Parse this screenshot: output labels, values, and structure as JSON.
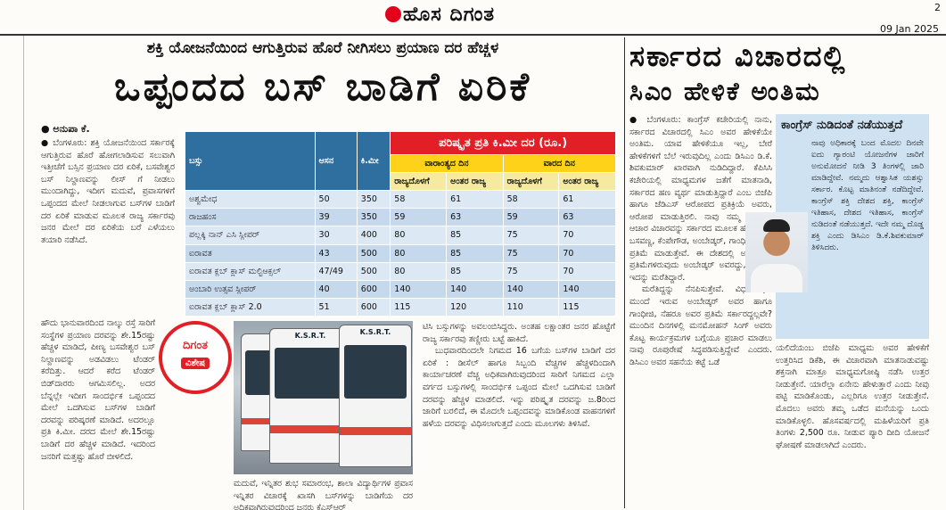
{
  "masthead": {
    "logo": "ಹೊಸ ದಿಗಂತ",
    "page_number": "2",
    "date": "09 Jan 2025"
  },
  "main": {
    "kicker": "ಶಕ್ತಿ ಯೋಜನೆಯಿಂದ ಆಗುತ್ತಿರುವ ಹೊರೆ ನೀಗಿಸಲು ಪ್ರಯಾಣ ದರ ಹೆಚ್ಚಳ",
    "headline": "ಒಪ್ಪಂದದ ಬಸ್ ಬಾಡಿಗೆ ಏರಿಕೆ",
    "byline": "● ಅನುಪಾ ಕೆ.",
    "col1": "● ಬೆಂಗಳೂರು: ಶಕ್ತಿ ಯೋಜನೆಯಿಂದ ಸರ್ಕಾರಕ್ಕೆ ಆಗುತ್ತಿರುವ ಹೊರೆ ಹೋಗಲಾಡಿಸುವ ಸಲುವಾಗಿ ಇತ್ತೀಚೆಗೆ ಬಸ್ಸಿನ ಪ್ರಯಾಣ ದರ ಏರಿಕೆ, ಬಸವೇಶ್ವರ ಬಸ್ ನಿಲ್ದಾಣವನ್ನು ಲೀಸ್ ಗೆ ನೀಡಲು ಮುಂದಾಗಿದ್ದು, ಇದೀಗ ಮದುವೆ, ಪ್ರವಾಸಗಳಿಗೆ ಒಪ್ಪಂದದ ಮೇಲೆ ನೀಡಲಾಗುವ ಬಸ್‌ಗಳ ಬಾಡಿಗೆ ದರ ಏರಿಕೆ ಮಾಡುವ ಮೂಲಕ ರಾಜ್ಯ ಸರ್ಕಾರವು ಜನರ ಮೇಲೆ ದರ ಏರಿಕೆಯ ಬರೆ ಎಳೆಯಲು ತಯಾರಿ ನಡೆಸಿದೆ.",
    "col1b": "ಹೌದು ಭಾನುವಾರದಿಂದ ನಾಲ್ಕು ರಸ್ತೆ ಸಾರಿಗೆ ಸಂಸ್ಥೆಗಳ ಪ್ರಯಾಣ ದರವನ್ನು ಶೇ.15ರಷ್ಟು ಹೆಚ್ಚಳ ಮಾಡಿದೆ, ಪೀಣ್ಯ ಬಸವೇಶ್ವರ ಬಸ್ ನಿಲ್ದಾಣವನ್ನು ಅಡವಿಡಲು ಟೆಂಡರ್ ಕರೆದಿತ್ತು. ಆದರೆ ಕರೆದ ಟೆಂಡರ್ ಬಿಡ್‌ದಾರರು ಆಗಮಿಸಲಿಲ್ಲ. ಅದರ ಬೆನ್ನಲ್ಲೇ ಇದೀಗ ಸಾಂದರ್ಭಿಕ ಒಪ್ಪಂದದ ಮೇಲೆ ಒದಗಿಸುವ ಬಸ್‌ಗಳ ಬಾಡಿಗೆ ದರವನ್ನು ಪರಿಷ್ಕರಣೆ ಮಾಡಿದೆ. ಅದರಲ್ಲೂ ಪ್ರತಿ ಕಿ.ಮೀ. ದರದ ಮೇಲೆ ಶೇ.15ರಷ್ಟು ಬಾಡಿಗೆ ದರ ಹೆಚ್ಚಳ ಮಾಡಿದೆ. ಇದರಿಂದ ಜನರಿಗೆ ಮತ್ತಷ್ಟು ಹೊರೆ ಬೀಳಲಿದೆ.",
    "col2": "ಮದುವೆ, ಇನ್ನಿತರ ಶುಭ ಸಮಾರಂಭ, ಶಾಲಾ ವಿದ್ಯಾರ್ಥಿಗಳ ಪ್ರವಾಸ ಇನ್ನಿತರ ವಿಚಾರಕ್ಕೆ ಖಾಸಗಿ ಬಸ್‌ಗಳನ್ನು ಬಾಡಿಗೆಯ ದರ ಅಧಿಕವಾಗಿರುವುದರಿಂದ ಜನರು ಕೆಎಸ್‌ಆರ್",
    "col3": "ಟಿಸಿ ಬಸ್ಸುಗಳನ್ನು ಅವಲಂಬಿಸಿದ್ದರು. ಅಂತಹ ಲಕ್ಷಾಂತರ ಜನರ ಹೊಟ್ಟೆಗೆ ರಾಜ್ಯ ಸರ್ಕಾರವು ತಣ್ಣೀರು ಬಟ್ಟೆ ಹಾಕಿದೆ.",
    "col3b": "ಬುಧವಾರದಿಂದಲೇ ನಿಗಮದ 16 ಬಗೆಯ ಬಸ್‌ಗಳ ಬಾಡಿಗೆ ದರ ಏರಿಕೆ : ಡೀಸೆಲ್ ಹಾಗೂ ಸಿಬ್ಬಂದಿ ವೆಚ್ಚಗಳ ಹೆಚ್ಚಳದಿಂದಾಗಿ ಕಾರ್ಯಾಚರಣೆ ವೆಚ್ಚ ಅಧಿಕವಾಗಿರುವುದರಿಂದ ಸಾರಿಗೆ ನಿಗಮದ ಎಲ್ಲಾ ವರ್ಗದ ಬಸ್ಸುಗಳಲ್ಲಿ ಸಾಂದರ್ಭಿಕ ಒಪ್ಪಂದ ಮೇಲೆ ಒದಗಿಸುವ ಬಾಡಿಗೆ ದರವನ್ನು ಹೆಚ್ಚಳ ಮಾಡಲಿದೆ. ಇನ್ನು ಪರಿಷ್ಕೃತ ದರವನ್ನು ಜ.8ರಿಂದ ಜಾರಿಗೆ ಬರಲಿದೆ, ಈ ಮೊದಲೇ ಒಪ್ಪಂದವನ್ನು ಮಾಡಿಕೊಂಡ ವಾಹನಗಳಿಗೆ ಹಳೆಯ ದರವನ್ನು ವಿಧಿಸಲಾಗುತ್ತದೆ ಎಂದು ಮೂಲಗಳು ತಿಳಿಸಿವೆ."
  },
  "rate_table": {
    "headers": {
      "bus": "ಬಸ್ಸು",
      "seats": "ಆಸನ",
      "km": "ಕಿ.ಮೀ",
      "rate": "ಪರಿಷ್ಕೃತ ಪ್ರತಿ ಕಿ.ಮೀ ದರ (ರೂ.)",
      "weekday": "ವಾರಾಂತ್ಯದ ದಿನ",
      "weekend": "ವಾರದ ದಿನ",
      "in_state": "ರಾಜ್ಯದೊಳಗೆ",
      "inter_state": "ಅಂತರ ರಾಜ್ಯ"
    },
    "rows": [
      {
        "bus": "ಅಶ್ವಮೇಧ",
        "seats": "50",
        "km": "350",
        "a": "58",
        "b": "61",
        "c": "58",
        "d": "61"
      },
      {
        "bus": "ರಾಜಹಂಸ",
        "seats": "39",
        "km": "350",
        "a": "59",
        "b": "63",
        "c": "59",
        "d": "63"
      },
      {
        "bus": "ಪಲ್ಲಕ್ಕಿ ನಾನ್ ಎಸಿ ಸ್ಲೀಪರ್",
        "seats": "30",
        "km": "400",
        "a": "80",
        "b": "85",
        "c": "75",
        "d": "70"
      },
      {
        "bus": "ಐರಾವತ",
        "seats": "43",
        "km": "500",
        "a": "80",
        "b": "85",
        "c": "75",
        "d": "70"
      },
      {
        "bus": "ಐರಾವತ ಕ್ಲಬ್ ಕ್ಲಾಸ್ ಮಲ್ಟಿಆಕ್ಸಲ್",
        "seats": "47/49",
        "km": "500",
        "a": "80",
        "b": "85",
        "c": "75",
        "d": "70"
      },
      {
        "bus": "ಅಂಬಾರಿ ಉತ್ಸವ ಸ್ಲೀಪರ್",
        "seats": "40",
        "km": "600",
        "a": "140",
        "b": "140",
        "c": "140",
        "d": "140"
      },
      {
        "bus": "ಐರಾವತ ಕ್ಲಬ್ ಕ್ಲಾಸ್ 2.0",
        "seats": "51",
        "km": "600",
        "a": "115",
        "b": "120",
        "c": "110",
        "d": "115"
      }
    ]
  },
  "badge": {
    "title": "ದಿಗಂತ",
    "label": "ವಿಶೇಷ"
  },
  "bus_photo": {
    "label1": "K.S.R.T.",
    "label2": "K.S.R.T."
  },
  "right": {
    "headline1": "ಸರ್ಕಾರದ ವಿಚಾರದಲ್ಲಿ",
    "headline2": "ಸಿಎಂ ಹೇಳಿಕೆ ಅಂತಿಮ",
    "col1": "● ಬೆಂಗಳೂರು: ಕಾಂಗ್ರೆಸ್ ಕಚೇರಿಯಲ್ಲಿ ನಾನು, ಸರ್ಕಾರದ ವಿಚಾರದಲ್ಲಿ ಸಿಎಂ ಅವರ ಹೇಳಿಕೆಯೇ ಅಂತಿಮ. ಯಾವ ಹೇಳಿಕೆಯೂ ಇಲ್ಲ, ಬೇರೆ ಹೇಳಿಕೆಗಳಿಗೆ ಬೆಲೆ ಇರುವುದಿಲ್ಲ ಎಂದು ಡಿಸಿಎಂ ಡಿ.ಕೆ. ಶಿವಕುಮಾರ್ ಖಾರವಾಗಿ ನುಡಿದಿದ್ದಾರೆ. ಕೆಪಿಸಿಸಿ ಕಚೇರಿಯಲ್ಲಿ ಮಾಧ್ಯಮಗಳ ಜತೆಗೆ ಮಾತನಾಡಿ, ಸರ್ಕಾರದ ಹಣ ವ್ಯರ್ಥ ಮಾಡುತ್ತಿದ್ದಾರೆ ಎಂಬ ಬಿಜೆಪಿ ಹಾಗೂ ಜೆಡಿಎಸ್ ಆರೋಪದ ಪ್ರತಿಕ್ರಿಯೆ ಅವರು, ಆರೋಪ ಮಾಡುತ್ತಿರಲಿ. ನಾವು ನಮ್ಮ ಸಿದ್ಧಾಂತ, ಆಚಾರ ವಿಚಾರವನ್ನು ಸರ್ಕಾರದ ಮೂಲಕ ಹೇಳುತ್ತೇವೆ. ಬಸವಣ್ಣ, ಕೆಂಪೇಗೌಡ, ಅಂಬೇಡ್ಕರ್, ಗಾಂಧೀಜಿ ಅವರ ಪ್ರತಿಮೆ ಮಾಡುತ್ತೇವೆ. ಈ ದೇಶದಲ್ಲಿ ಅತಿ ಹೆಚ್ಚು ಪ್ರತಿಮೆಗಳಿರುವುದು ಅಂಬೇಡ್ಕರ್ ಅವರದ್ದು, ಕೆಲವರು ಇದನ್ನು ಮರೆತಿದ್ದಾರೆ.",
    "col1b": "ಮರೆತಿದ್ದನ್ನು ನೆನಪಿಸುತ್ತೇವೆ. ವಿಧಾನಸೌಧದ ಮುಂದೆ ಇರುವ ಅಂಬೇಡ್ಕರ್ ಅವರ ಹಾಗೂ ಗಾಂಧೀಜಿ, ನೆಹರೂ ಅವರ ಪ್ರತಿಮೆ ಸರ್ಕಾರದ್ದಲ್ಲವೇ? ಮುಂದಿನ ದಿನಗಳಲ್ಲಿ ಮನಮೋಹನ್ ಸಿಂಗ್ ಅವರು ಕೊಟ್ಟ ಕಾರ್ಯಕ್ರಮಗಳ ಬಗ್ಗೆಯೂ ಪ್ರಚಾರ ಮಾಡಲು ನಾವು ರೂಪುರೇಷೆ ಸಿದ್ಧಪಡಿಸುತ್ತಿದ್ದೇವೆ ಎಂದರು. ಡಿಸಿಎಂ ಅವರ ಸಹನೆಯ ಕಟ್ಟೆ ಒಡೆ",
    "col2": "ಯಲಿದೆಯಂಬ ಬಿಜೆಪಿ ಮಾಧ್ಯಮ ಅವರ ಹೇಳಿಕೆಗೆ ಉತ್ತರಿಸಿದ ಡಿಕೆಶಿ, ಈ ವಿಚಾರವಾಗಿ ಮಾತನಾಡುವಷ್ಟು ಶಕ್ತನಾಗಿ ಮಾತ್ರೂ ಮಾಧ್ಯಮಗೋಷ್ಠಿ ನಡೆಸಿ ಉತ್ತರ ನೀಡುತ್ತೇನೆ. ಯಾರೆಲ್ಲಾ ಏನೇನು ಹೇಳುತ್ತಾರೆ ಎಂದು ನೀವು ಪಟ್ಟಿ ಮಾಡಿಕೊಂಡು, ಎಲ್ಲರಿಗೂ ಉತ್ತರ ನೀಡುತ್ತೇನೆ. ಮೊದಲು ಅವರು ತಮ್ಮ ಒಡೆದ ಮನೆಯನ್ನು ಒಂದು ಮಾಡಿಕೊಳ್ಳಲಿ. ಹೊಸವರ್ಷದಲ್ಲಿ ಮಹಿಳೆಯರಿಗೆ ಪ್ರತಿ ತಿಂಗಳು 2,500 ರೂ. ನೀಡುವ ಪ್ಯಾರಿ ದೀದಿ ಯೋಜನೆ ಘೋಷಣೆ ಮಾಡಲಾಗಿದೆ ಎಂದರು."
  },
  "sidebox": {
    "title": "ಕಾಂಗ್ರೆಸ್ ನುಡಿದಂತೆ ನಡೆಯುತ್ತದೆ",
    "body": "ನಾವು ಅಧಿಕಾರಕ್ಕೆ ಬಂದ ಮೊದಲ ದಿನವೇ ಐದು ಗ್ಯಾರಂಟಿ ಯೋಜನೆಗಳ ಜಾರಿಗೆ ಅನುಮೋದನೆ ನೀಡಿ 3 ತಿಂಗಳಲ್ಲಿ ಜಾರಿ ಮಾಡಿದ್ದೇವೆ. ನಮ್ಮದು ಆಶ್ವಾಸಿತ ಯಶಸ್ಸು ಸರ್ಕಾರ. ಕೊಟ್ಟ ಮಾತಿನಂತೆ ನಡೆದಿದ್ದೇವೆ. ಕಾಂಗ್ರೆಸ್ ಶಕ್ತಿ ದೇಶದ ಶಕ್ತಿ, ಕಾಂಗ್ರೆಸ್ ಇತಿಹಾಸ, ದೇಶದ ಇತಿಹಾಸ, ಕಾಂಗ್ರೆಸ್ ನುಡಿದಂತೆ ನಡೆಯುತ್ತದೆ. ಇದೇ ನಮ್ಮ ದೊಡ್ಡ ಶಕ್ತಿ ಎಂದು ಡಿಸಿಎಂ ಡಿ.ಕೆ.ಶಿವಕುಮಾರ್ ತಿಳಿಸಿದರು."
  },
  "colors": {
    "red": "#e21f26",
    "yellow": "#ffd21a",
    "table_blue": "#2f6f9f",
    "box_blue": "#cfe2f2"
  }
}
